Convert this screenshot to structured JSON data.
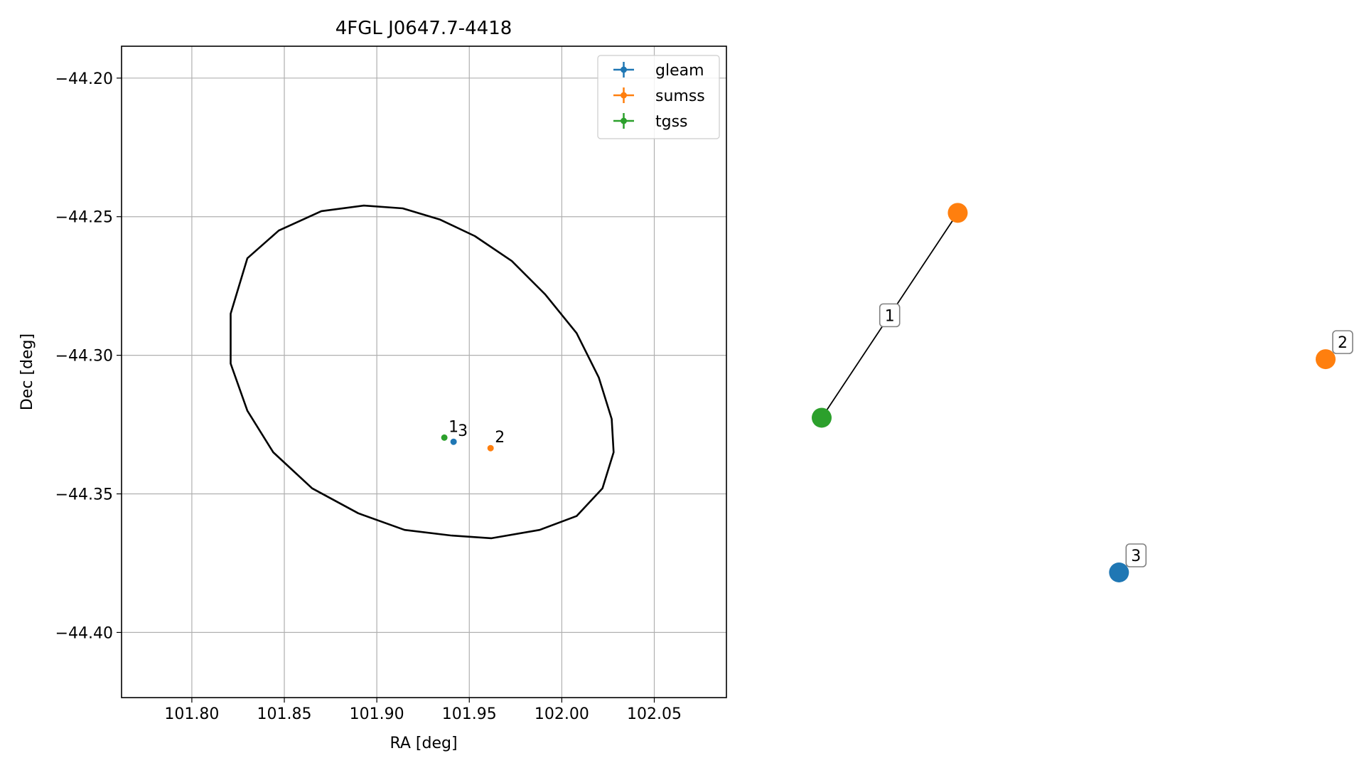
{
  "chart_data": [
    {
      "type": "scatter",
      "title": "4FGL J0647.7-4418",
      "xlabel": "RA [deg]",
      "ylabel": "Dec [deg]",
      "xlim": [
        101.762,
        102.089
      ],
      "ylim": [
        -44.4235,
        -44.1885
      ],
      "xticks": [
        101.8,
        101.85,
        101.9,
        101.95,
        102.0,
        102.05
      ],
      "xtick_labels": [
        "101.80",
        "101.85",
        "101.90",
        "101.95",
        "102.00",
        "102.05"
      ],
      "yticks": [
        -44.2,
        -44.25,
        -44.3,
        -44.35,
        -44.4
      ],
      "ytick_labels": [
        "−44.20",
        "−44.25",
        "−44.30",
        "−44.35",
        "−44.40"
      ],
      "grid": true,
      "legend_position": "top-right",
      "ellipse": {
        "center": [
          101.926,
          -44.306
        ],
        "points": [
          [
            101.893,
            -44.246
          ],
          [
            101.914,
            -44.247
          ],
          [
            101.934,
            -44.251
          ],
          [
            101.953,
            -44.257
          ],
          [
            101.973,
            -44.266
          ],
          [
            101.991,
            -44.278
          ],
          [
            102.008,
            -44.292
          ],
          [
            102.02,
            -44.308
          ],
          [
            102.027,
            -44.323
          ],
          [
            102.028,
            -44.335
          ],
          [
            102.022,
            -44.348
          ],
          [
            102.008,
            -44.358
          ],
          [
            101.988,
            -44.363
          ],
          [
            101.962,
            -44.366
          ],
          [
            101.94,
            -44.365
          ],
          [
            101.915,
            -44.363
          ],
          [
            101.89,
            -44.357
          ],
          [
            101.865,
            -44.348
          ],
          [
            101.844,
            -44.335
          ],
          [
            101.83,
            -44.32
          ],
          [
            101.821,
            -44.303
          ],
          [
            101.821,
            -44.285
          ],
          [
            101.83,
            -44.265
          ],
          [
            101.847,
            -44.255
          ],
          [
            101.87,
            -44.248
          ]
        ]
      },
      "series": [
        {
          "name": "gleam",
          "color": "#1f77b4",
          "points": [
            {
              "x": 101.9415,
              "y": -44.3312,
              "label": "3"
            }
          ]
        },
        {
          "name": "sumss",
          "color": "#ff7f0e",
          "points": [
            {
              "x": 101.9615,
              "y": -44.3335,
              "label": "2"
            }
          ]
        },
        {
          "name": "tgss",
          "color": "#2ca02c",
          "points": [
            {
              "x": 101.9365,
              "y": -44.3297,
              "label": "1"
            }
          ]
        }
      ]
    },
    {
      "type": "network",
      "nodes": [
        {
          "id": "sumss-a",
          "series": "sumss",
          "color": "#ff7f0e",
          "x": 0.27,
          "y": 0.86
        },
        {
          "id": "tgss-1",
          "series": "tgss",
          "color": "#2ca02c",
          "x": 0.0,
          "y": 0.37
        },
        {
          "id": "sumss-2",
          "series": "sumss",
          "color": "#ff7f0e",
          "x": 1.0,
          "y": 0.51,
          "label": "2"
        },
        {
          "id": "gleam-3",
          "series": "gleam",
          "color": "#1f77b4",
          "x": 0.59,
          "y": 0.0,
          "label": "3"
        }
      ],
      "edges": [
        {
          "from": "tgss-1",
          "to": "sumss-a",
          "label": "1"
        }
      ]
    }
  ]
}
